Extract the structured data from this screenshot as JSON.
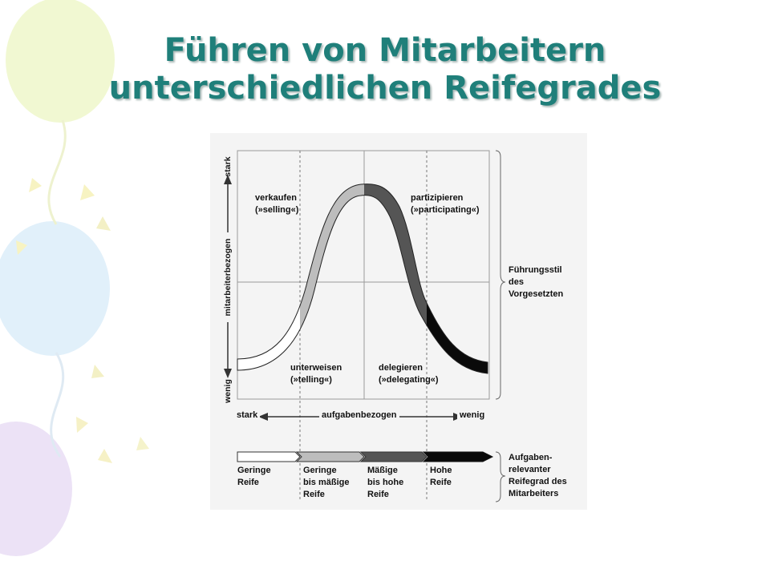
{
  "slide": {
    "title_line1": "Führen von Mitarbeitern",
    "title_line2": "unterschiedlichen Reifegrades"
  },
  "diagram": {
    "y_axis": {
      "top": "stark",
      "label": "mitarbeiterbezogen",
      "bottom": "wenig"
    },
    "x_axis": {
      "left": "stark",
      "label": "aufgabenbezogen",
      "right": "wenig"
    },
    "styles": [
      {
        "line1": "verkaufen",
        "line2": "(»selling«)"
      },
      {
        "line1": "partizipieren",
        "line2": "(»participating«)"
      },
      {
        "line1": "unterweisen",
        "line2": "(»telling«)"
      },
      {
        "line1": "delegieren",
        "line2": "(»delegating«)"
      }
    ],
    "right_label": {
      "line1": "Führungsstil",
      "line2": "des",
      "line3": "Vorgesetzten"
    },
    "maturity": [
      {
        "line1": "Geringe",
        "line2": "Reife",
        "line3": ""
      },
      {
        "line1": "Geringe",
        "line2": "bis mäßige",
        "line3": "Reife"
      },
      {
        "line1": "Mäßige",
        "line2": "bis hohe",
        "line3": "Reife"
      },
      {
        "line1": "Hohe",
        "line2": "Reife",
        "line3": ""
      }
    ],
    "maturity_label": {
      "line1": "Aufgaben-",
      "line2": "relevanter",
      "line3": "Reifegrad des",
      "line4": "Mitarbeiters"
    },
    "colors": {
      "title": "#1f7f7a",
      "segment_1": "#ffffff",
      "segment_2": "#bdbdbd",
      "segment_3": "#555555",
      "segment_4": "#0a0a0a"
    }
  }
}
